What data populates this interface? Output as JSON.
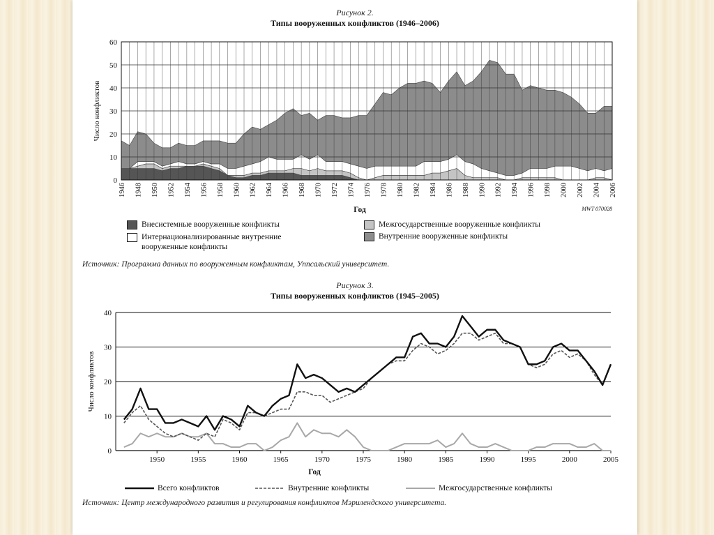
{
  "figure1": {
    "caption": "Рисунок 2.",
    "title": "Типы вооруженных конфликтов (1946–2006)",
    "source": "Источник: Программа данных по вооруженным конфликтам, Уппсальский университет.",
    "mark": "MWT 070028",
    "legend": {
      "extrasystemic": "Внесистемные вооруженные конфликты",
      "interstate": "Межгосударственные вооруженные конфликты",
      "internationalized_1": "Интернационализированные внутренние",
      "internationalized_2": "вооруженные конфликты",
      "internal": "Внутренние вооруженные конфликты"
    },
    "colors": {
      "extrasystemic": "#555555",
      "internationalized": "#ffffff",
      "interstate": "#c4c4c4",
      "internal": "#8c8c8c"
    }
  },
  "figure2": {
    "caption": "Рисунок 3.",
    "title": "Типы вооруженных конфликтов (1945–2005)",
    "source": "Источник: Центр международного развития и регулирования конфликтов Мэрилендского университета.",
    "legend": {
      "total": "Всего конфликтов",
      "internal": "Внутренние конфликты",
      "interstate": "Межгосударственные конфликты"
    }
  },
  "chart_data": [
    {
      "type": "area",
      "stacked": true,
      "title": "Типы вооруженных конфликтов (1946–2006)",
      "xlabel": "Год",
      "ylabel": "Число конфликтов",
      "ylim": [
        0,
        60
      ],
      "yticks": [
        0,
        10,
        20,
        30,
        40,
        50,
        60
      ],
      "grid": true,
      "legend_position": "bottom",
      "x": [
        1946,
        1947,
        1948,
        1949,
        1950,
        1951,
        1952,
        1953,
        1954,
        1955,
        1956,
        1957,
        1958,
        1959,
        1960,
        1961,
        1962,
        1963,
        1964,
        1965,
        1966,
        1967,
        1968,
        1969,
        1970,
        1971,
        1972,
        1973,
        1974,
        1975,
        1976,
        1977,
        1978,
        1979,
        1980,
        1981,
        1982,
        1983,
        1984,
        1985,
        1986,
        1987,
        1988,
        1989,
        1990,
        1991,
        1992,
        1993,
        1994,
        1995,
        1996,
        1997,
        1998,
        1999,
        2000,
        2001,
        2002,
        2003,
        2004,
        2005,
        2006
      ],
      "xticks": [
        1946,
        1948,
        1950,
        1952,
        1954,
        1956,
        1958,
        1960,
        1962,
        1964,
        1966,
        1968,
        1970,
        1972,
        1974,
        1976,
        1978,
        1980,
        1982,
        1984,
        1986,
        1988,
        1990,
        1992,
        1994,
        1996,
        1998,
        2000,
        2002,
        2004,
        2006
      ],
      "series": [
        {
          "name": "Внесистемные вооруженные конфликты",
          "values": [
            5,
            5,
            5,
            5,
            5,
            4,
            5,
            5,
            6,
            6,
            6,
            5,
            4,
            2,
            1,
            1,
            2,
            2,
            3,
            3,
            3,
            3,
            2,
            2,
            2,
            2,
            2,
            2,
            1,
            0,
            0,
            0,
            0,
            0,
            0,
            0,
            0,
            0,
            0,
            0,
            0,
            0,
            0,
            0,
            0,
            0,
            0,
            0,
            0,
            0,
            0,
            0,
            0,
            0,
            0,
            0,
            0,
            0,
            0,
            0,
            0
          ]
        },
        {
          "name": "Межгосударственные вооруженные конфликты",
          "values": [
            0,
            0,
            1,
            2,
            2,
            1,
            1,
            1,
            0,
            0,
            1,
            1,
            1,
            0,
            1,
            1,
            1,
            1,
            1,
            1,
            1,
            2,
            3,
            2,
            3,
            2,
            2,
            2,
            2,
            1,
            0,
            1,
            2,
            2,
            2,
            2,
            2,
            2,
            3,
            3,
            4,
            5,
            2,
            1,
            1,
            1,
            1,
            0,
            0,
            1,
            1,
            1,
            1,
            1,
            0,
            0,
            0,
            0,
            1,
            1,
            0
          ]
        },
        {
          "name": "Интернационализированные внутренние вооруженные конфликты",
          "values": [
            0,
            0,
            2,
            1,
            1,
            1,
            1,
            2,
            1,
            1,
            1,
            1,
            2,
            3,
            3,
            4,
            4,
            5,
            6,
            5,
            5,
            4,
            6,
            5,
            6,
            4,
            4,
            4,
            4,
            5,
            5,
            5,
            4,
            4,
            4,
            4,
            4,
            6,
            5,
            5,
            5,
            6,
            6,
            6,
            4,
            3,
            2,
            2,
            2,
            2,
            4,
            4,
            4,
            5,
            6,
            6,
            5,
            4,
            4,
            3,
            5
          ]
        },
        {
          "name": "Внутренние вооруженные конфликты",
          "values": [
            12,
            10,
            13,
            12,
            8,
            8,
            7,
            8,
            8,
            8,
            9,
            10,
            10,
            11,
            11,
            14,
            16,
            14,
            14,
            17,
            20,
            22,
            17,
            20,
            15,
            20,
            20,
            19,
            20,
            22,
            23,
            27,
            32,
            31,
            34,
            36,
            36,
            35,
            34,
            30,
            34,
            36,
            33,
            36,
            42,
            48,
            48,
            44,
            44,
            36,
            36,
            35,
            34,
            33,
            32,
            30,
            28,
            25,
            24,
            28,
            27
          ]
        }
      ]
    },
    {
      "type": "line",
      "title": "Типы вооруженных конфликтов (1945–2005)",
      "xlabel": "Год",
      "ylabel": "Число конфликтов",
      "ylim": [
        0,
        40
      ],
      "yticks": [
        0,
        10,
        20,
        30,
        40
      ],
      "grid": true,
      "legend_position": "bottom",
      "x": [
        1946,
        1947,
        1948,
        1949,
        1950,
        1951,
        1952,
        1953,
        1954,
        1955,
        1956,
        1957,
        1958,
        1959,
        1960,
        1961,
        1962,
        1963,
        1964,
        1965,
        1966,
        1967,
        1968,
        1969,
        1970,
        1971,
        1972,
        1973,
        1974,
        1975,
        1976,
        1977,
        1978,
        1979,
        1980,
        1981,
        1982,
        1983,
        1984,
        1985,
        1986,
        1987,
        1988,
        1989,
        1990,
        1991,
        1992,
        1993,
        1994,
        1995,
        1996,
        1997,
        1998,
        1999,
        2000,
        2001,
        2002,
        2003,
        2004,
        2005
      ],
      "xticks": [
        1950,
        1955,
        1960,
        1965,
        1970,
        1975,
        1980,
        1985,
        1990,
        1995,
        2000,
        2005
      ],
      "series": [
        {
          "name": "Всего конфликтов",
          "values": [
            9,
            12,
            18,
            12,
            12,
            8,
            8,
            9,
            8,
            7,
            10,
            6,
            10,
            9,
            7,
            13,
            11,
            10,
            13,
            15,
            16,
            25,
            21,
            22,
            21,
            19,
            17,
            18,
            17,
            19,
            21,
            23,
            25,
            27,
            27,
            33,
            34,
            31,
            31,
            30,
            33,
            39,
            36,
            33,
            35,
            35,
            32,
            31,
            30,
            25,
            25,
            26,
            30,
            31,
            29,
            29,
            26,
            23,
            19,
            25
          ]
        },
        {
          "name": "Внутренние конфликты",
          "values": [
            8,
            11,
            13,
            9,
            7,
            5,
            4,
            5,
            4,
            3,
            5,
            4,
            9,
            8,
            6,
            11,
            11,
            10,
            11,
            12,
            12,
            17,
            17,
            16,
            16,
            14,
            15,
            16,
            17,
            18,
            21,
            23,
            25,
            26,
            26,
            29,
            31,
            30,
            28,
            29,
            31,
            34,
            34,
            32,
            33,
            34,
            31,
            31,
            30,
            25,
            24,
            25,
            28,
            29,
            27,
            28,
            26,
            22,
            19,
            25
          ]
        },
        {
          "name": "Межгосударственные конфликты",
          "values": [
            1,
            2,
            5,
            4,
            5,
            4,
            4,
            5,
            4,
            4,
            5,
            2,
            2,
            1,
            1,
            2,
            2,
            0,
            1,
            3,
            4,
            8,
            4,
            6,
            5,
            5,
            4,
            6,
            4,
            1,
            0,
            0,
            0,
            1,
            2,
            2,
            2,
            2,
            3,
            1,
            2,
            5,
            2,
            1,
            1,
            2,
            1,
            0,
            0,
            0,
            1,
            1,
            2,
            2,
            2,
            1,
            1,
            2,
            0,
            0
          ]
        }
      ]
    }
  ]
}
